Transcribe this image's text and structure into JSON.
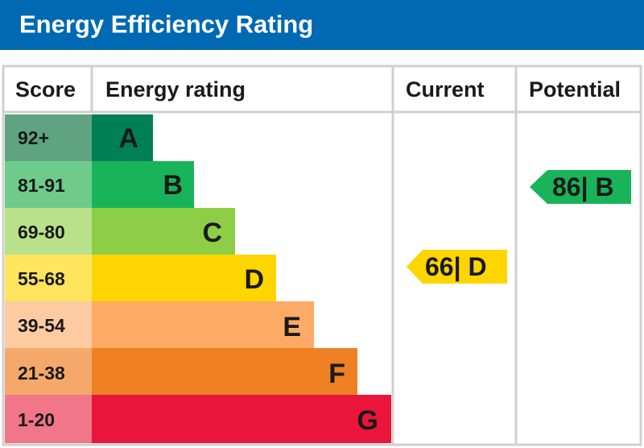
{
  "header": {
    "title": "Energy Efficiency Rating"
  },
  "table": {
    "columns": [
      "Score",
      "Energy rating",
      "Current",
      "Potential"
    ],
    "rows": [
      {
        "score": "92+",
        "rating": "A"
      },
      {
        "score": "81-91",
        "rating": "B"
      },
      {
        "score": "69-80",
        "rating": "C"
      },
      {
        "score": "55-68",
        "rating": "D"
      },
      {
        "score": "39-54",
        "rating": "E"
      },
      {
        "score": "21-38",
        "rating": "F"
      },
      {
        "score": "1-20",
        "rating": "G"
      }
    ],
    "current": "66| D",
    "potential": "86| B"
  }
}
